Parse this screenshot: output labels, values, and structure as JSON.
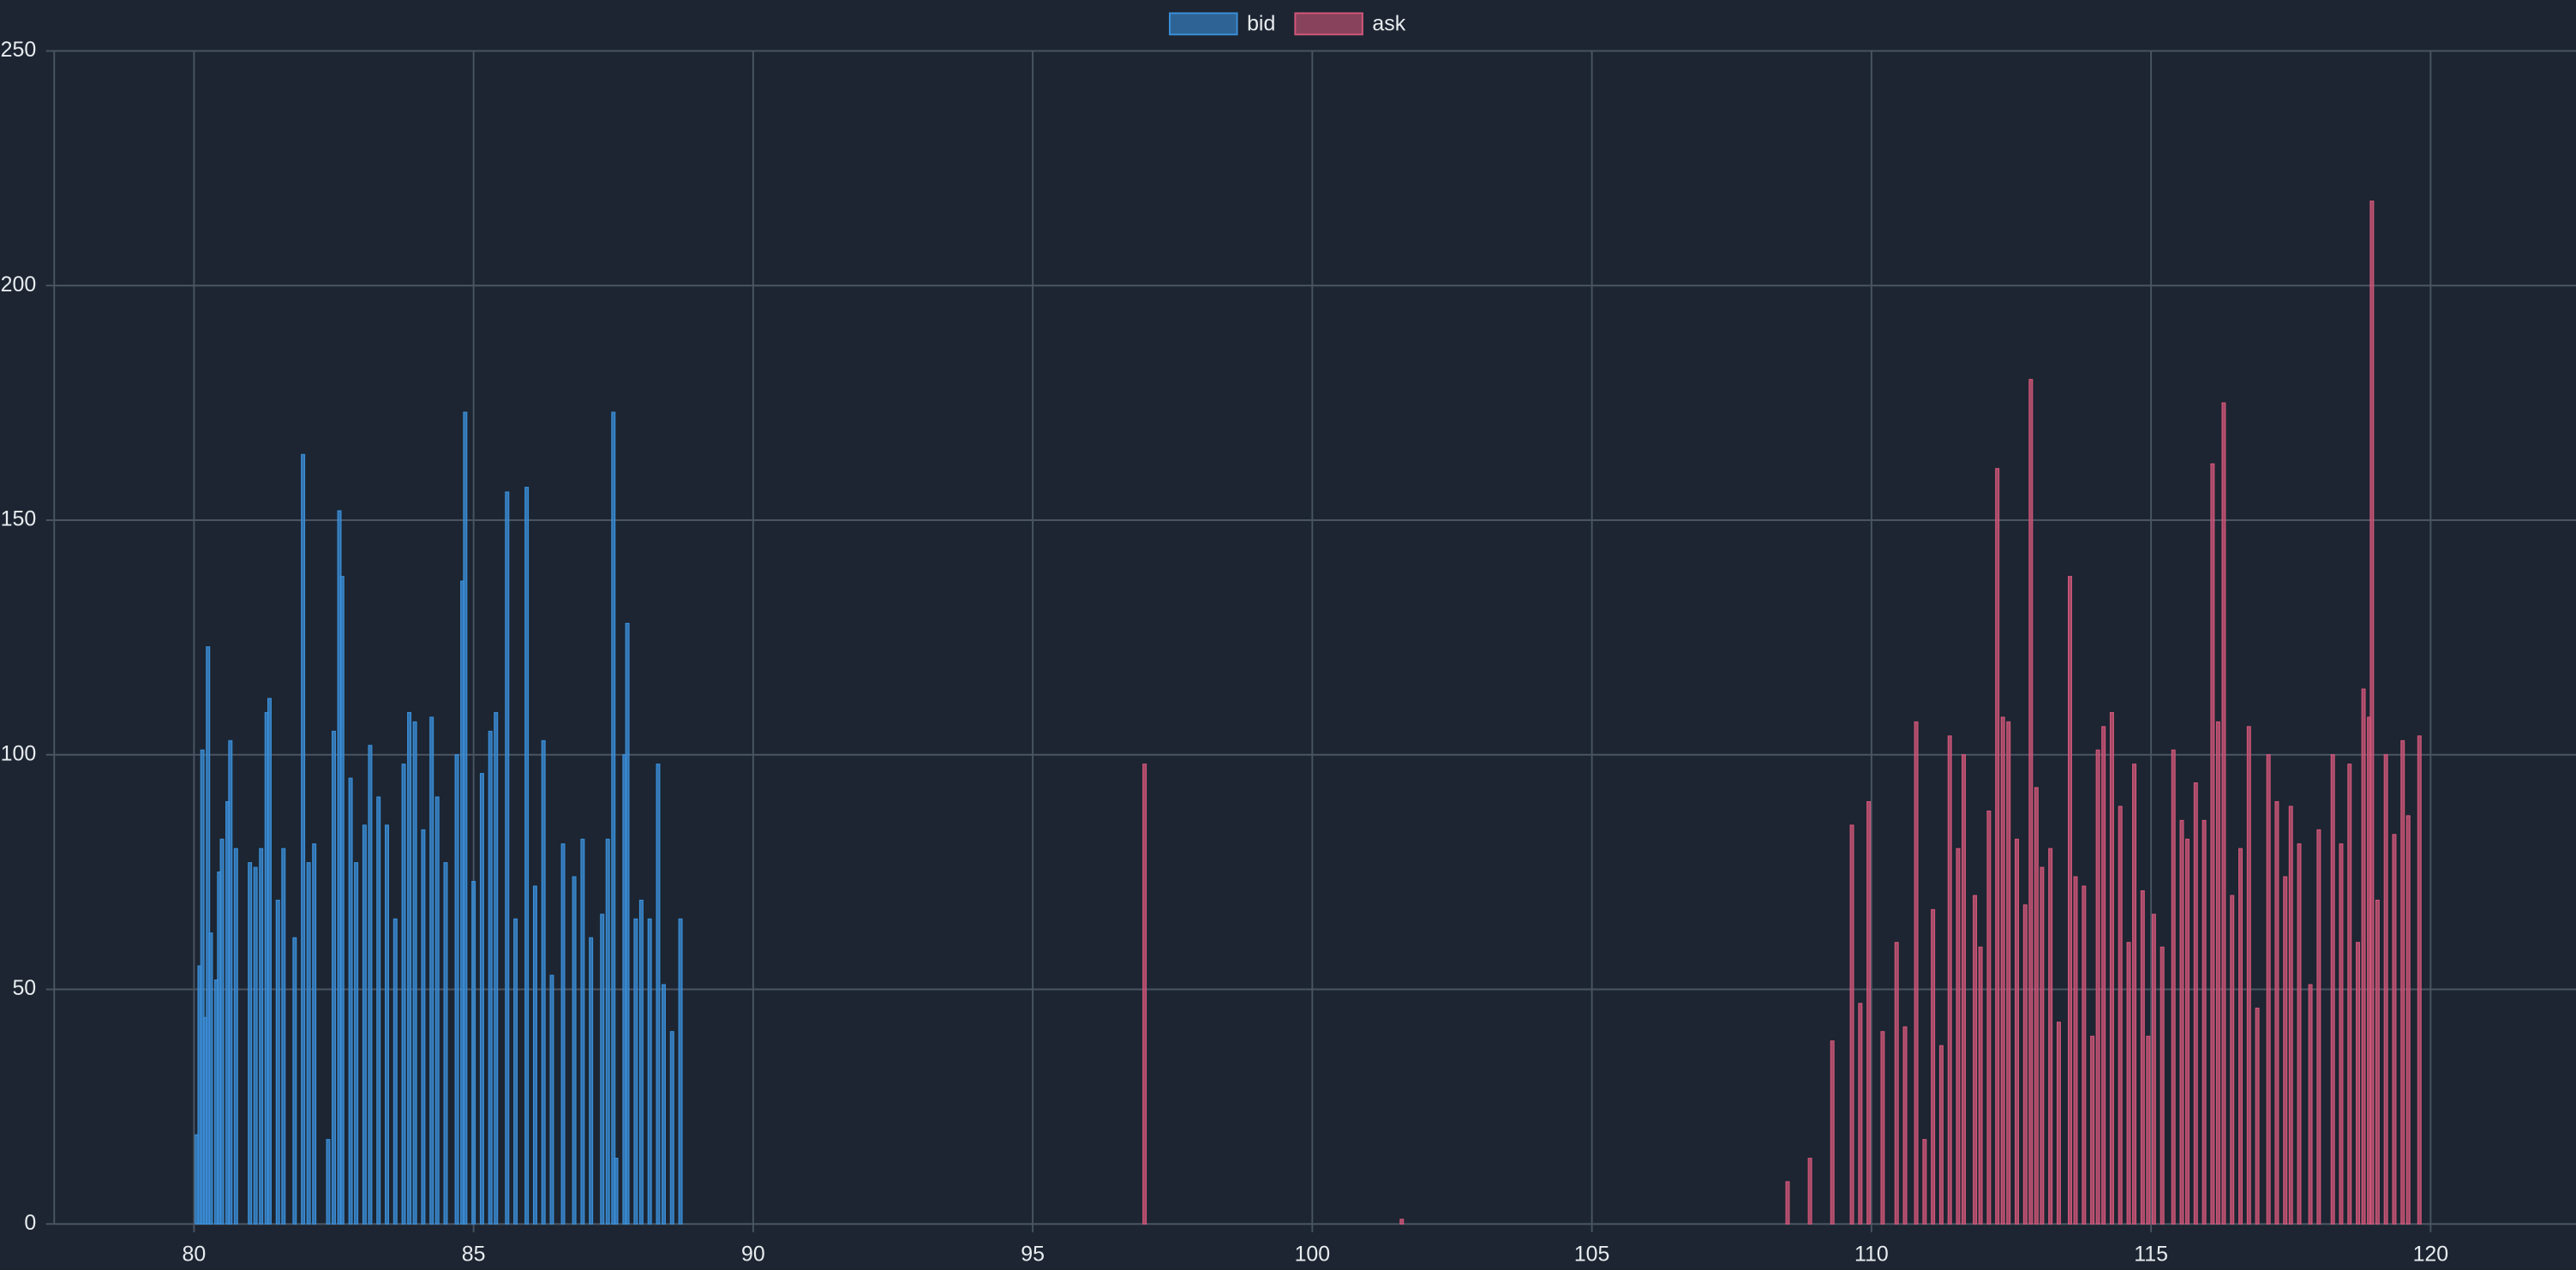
{
  "chart_data": {
    "type": "bar",
    "series": [
      {
        "name": "bid",
        "color": "#3b8fd9",
        "x": [
          80.05,
          80.1,
          80.15,
          80.2,
          80.25,
          80.3,
          80.4,
          80.45,
          80.5,
          80.6,
          80.65,
          80.75,
          81.0,
          81.1,
          81.2,
          81.3,
          81.35,
          81.5,
          81.6,
          81.8,
          81.95,
          82.05,
          82.15,
          82.4,
          82.5,
          82.6,
          82.65,
          82.8,
          82.9,
          83.05,
          83.15,
          83.3,
          83.45,
          83.6,
          83.75,
          83.85,
          83.95,
          84.1,
          84.25,
          84.35,
          84.5,
          84.7,
          84.8,
          84.85,
          85.0,
          85.15,
          85.3,
          85.4,
          85.6,
          85.75,
          85.95,
          86.1,
          86.25,
          86.4,
          86.6,
          86.8,
          86.95,
          87.1,
          87.3,
          87.4,
          87.5,
          87.55,
          87.7,
          87.75,
          87.9,
          88.0,
          88.15,
          88.3,
          88.4,
          88.55,
          88.7
        ],
        "values": [
          19,
          55,
          101,
          44,
          123,
          62,
          52,
          75,
          82,
          90,
          103,
          80,
          77,
          76,
          80,
          109,
          112,
          69,
          80,
          61,
          164,
          77,
          81,
          18,
          105,
          152,
          138,
          95,
          77,
          85,
          102,
          91,
          85,
          65,
          98,
          109,
          107,
          84,
          108,
          91,
          77,
          100,
          137,
          173,
          73,
          96,
          105,
          109,
          156,
          65,
          157,
          72,
          103,
          53,
          81,
          74,
          82,
          61,
          66,
          82,
          173,
          14,
          100,
          128,
          65,
          69,
          65,
          98,
          51,
          41,
          65
        ]
      },
      {
        "name": "ask",
        "color": "#d2577a",
        "x": [
          97.0,
          101.6,
          108.5,
          108.9,
          109.3,
          109.65,
          109.8,
          109.95,
          110.2,
          110.45,
          110.6,
          110.8,
          110.95,
          111.1,
          111.25,
          111.4,
          111.55,
          111.65,
          111.85,
          111.95,
          112.1,
          112.25,
          112.35,
          112.45,
          112.6,
          112.75,
          112.85,
          112.95,
          113.05,
          113.2,
          113.35,
          113.55,
          113.65,
          113.8,
          113.95,
          114.05,
          114.15,
          114.3,
          114.45,
          114.6,
          114.7,
          114.85,
          114.95,
          115.05,
          115.2,
          115.4,
          115.55,
          115.65,
          115.8,
          115.95,
          116.1,
          116.2,
          116.3,
          116.45,
          116.6,
          116.75,
          116.9,
          117.1,
          117.25,
          117.4,
          117.5,
          117.65,
          117.85,
          118.0,
          118.25,
          118.4,
          118.55,
          118.7,
          118.8,
          118.9,
          118.95,
          119.05,
          119.2,
          119.35,
          119.5,
          119.6,
          119.8
        ],
        "values": [
          98,
          1,
          9,
          14,
          39,
          85,
          47,
          90,
          41,
          60,
          42,
          107,
          18,
          67,
          38,
          104,
          80,
          100,
          70,
          59,
          88,
          161,
          108,
          107,
          82,
          68,
          180,
          93,
          76,
          80,
          43,
          138,
          74,
          72,
          40,
          101,
          106,
          109,
          89,
          60,
          98,
          71,
          40,
          66,
          59,
          101,
          86,
          82,
          94,
          86,
          162,
          107,
          175,
          70,
          80,
          106,
          46,
          100,
          90,
          74,
          89,
          81,
          51,
          84,
          100,
          81,
          98,
          60,
          114,
          108,
          218,
          69,
          100,
          83,
          103,
          87,
          104
        ]
      }
    ],
    "xlim": [
      77.5,
      122.6
    ],
    "xticks": [
      80,
      85,
      90,
      95,
      100,
      105,
      110,
      115,
      120
    ],
    "ylim": [
      0,
      250
    ],
    "yticks": [
      0,
      50,
      100,
      150,
      200,
      250
    ],
    "grid": true,
    "legend": "top"
  }
}
